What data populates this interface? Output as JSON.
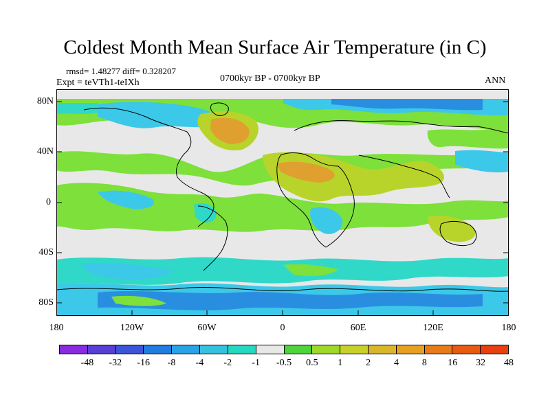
{
  "title": "Coldest Month Mean Surface Air Temperature (in C)",
  "stats": "rmsd= 1.48277 diff= 0.328207",
  "experiment": "Expt = teVTh1-teIXh",
  "period": "0700kyr BP - 0700kyr BP",
  "season": "ANN",
  "lat_ticks": [
    "80N",
    "40N",
    "0",
    "40S",
    "80S"
  ],
  "lon_ticks": [
    "180",
    "120W",
    "60W",
    "0",
    "60E",
    "120E",
    "180"
  ],
  "legend": {
    "colors": [
      "#8a2be2",
      "#5a3fd6",
      "#3a55d8",
      "#1f7ee0",
      "#2aa2e8",
      "#35c2e0",
      "#25d8c0",
      "#e8e8e8",
      "#4cd63a",
      "#a0d82a",
      "#c8d02a",
      "#d8b82a",
      "#e8a020",
      "#e87a1a",
      "#e85a12",
      "#e8400e"
    ],
    "labels": [
      "-48",
      "-32",
      "-16",
      "-8",
      "-4",
      "-2",
      "-1",
      "-0.5",
      "0.5",
      "1",
      "2",
      "4",
      "8",
      "16",
      "32",
      "48"
    ]
  },
  "map_colors": {
    "neutral": "#e8e8e8",
    "light_green": "#7ee03a",
    "green": "#4cd63a",
    "yellow_green": "#b8d42a",
    "orange": "#e0a030",
    "light_blue": "#3cc8e8",
    "blue": "#2a8ee0",
    "teal": "#30d8c8",
    "coast": "#000000"
  }
}
